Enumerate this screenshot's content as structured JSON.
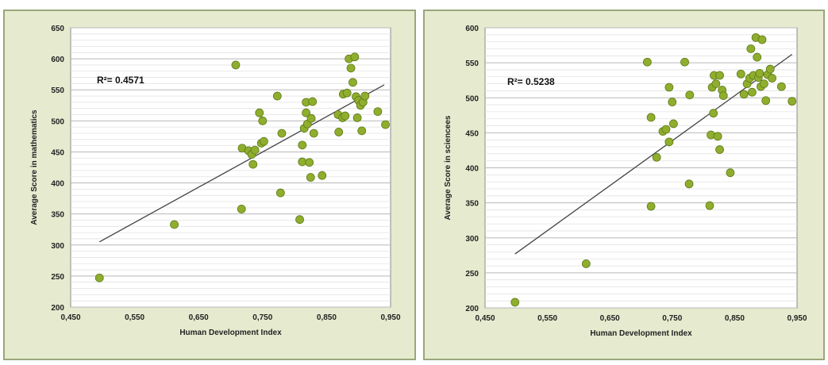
{
  "colors": {
    "panel_bg": "#e6ebcf",
    "plot_bg": "#ffffff",
    "grid": "#c8c8c8",
    "point": "#8fae2e",
    "trend": "#444444"
  },
  "chart_data": [
    {
      "type": "scatter",
      "title": "",
      "xlabel": "Human Development Index",
      "ylabel": "Average Score in mathematics",
      "xlim": [
        0.45,
        0.95
      ],
      "ylim": [
        200,
        650
      ],
      "x_ticks": [
        "0,450",
        "0,550",
        "0,650",
        "0,750",
        "0,850",
        "0,950"
      ],
      "y_ticks": [
        "200",
        "250",
        "300",
        "350",
        "400",
        "450",
        "500",
        "550",
        "600",
        "650"
      ],
      "annotation": "R²= 0.4571",
      "grid": true,
      "trendline": {
        "x": [
          0.495,
          0.94
        ],
        "y": [
          305,
          558
        ]
      },
      "points": [
        [
          0.495,
          247
        ],
        [
          0.612,
          333
        ],
        [
          0.708,
          590
        ],
        [
          0.717,
          358
        ],
        [
          0.718,
          456
        ],
        [
          0.728,
          452
        ],
        [
          0.733,
          446
        ],
        [
          0.735,
          430
        ],
        [
          0.738,
          453
        ],
        [
          0.745,
          513
        ],
        [
          0.748,
          464
        ],
        [
          0.75,
          500
        ],
        [
          0.752,
          467
        ],
        [
          0.773,
          540
        ],
        [
          0.778,
          384
        ],
        [
          0.78,
          480
        ],
        [
          0.808,
          341
        ],
        [
          0.812,
          434
        ],
        [
          0.812,
          461
        ],
        [
          0.815,
          488
        ],
        [
          0.818,
          513
        ],
        [
          0.818,
          530
        ],
        [
          0.82,
          495
        ],
        [
          0.823,
          433
        ],
        [
          0.825,
          409
        ],
        [
          0.826,
          504
        ],
        [
          0.828,
          531
        ],
        [
          0.83,
          480
        ],
        [
          0.843,
          412
        ],
        [
          0.868,
          510
        ],
        [
          0.869,
          482
        ],
        [
          0.875,
          505
        ],
        [
          0.876,
          543
        ],
        [
          0.879,
          508
        ],
        [
          0.882,
          545
        ],
        [
          0.885,
          600
        ],
        [
          0.888,
          585
        ],
        [
          0.891,
          562
        ],
        [
          0.894,
          603
        ],
        [
          0.896,
          539
        ],
        [
          0.898,
          505
        ],
        [
          0.9,
          533
        ],
        [
          0.903,
          525
        ],
        [
          0.905,
          484
        ],
        [
          0.907,
          530
        ],
        [
          0.91,
          540
        ],
        [
          0.93,
          515
        ],
        [
          0.942,
          494
        ]
      ]
    },
    {
      "type": "scatter",
      "title": "",
      "xlabel": "Human Development Index",
      "ylabel": "Average Score in sciencees",
      "xlim": [
        0.45,
        0.95
      ],
      "ylim": [
        200,
        600
      ],
      "x_ticks": [
        "0,450",
        "0,550",
        "0,650",
        "0,750",
        "0,850",
        "0,950"
      ],
      "y_ticks": [
        "200",
        "250",
        "300",
        "350",
        "400",
        "450",
        "500",
        "550",
        "600"
      ],
      "annotation": "R²= 0.5238",
      "grid": true,
      "trendline": {
        "x": [
          0.498,
          0.942
        ],
        "y": [
          277,
          562
        ]
      },
      "points": [
        [
          0.498,
          208
        ],
        [
          0.612,
          263
        ],
        [
          0.71,
          551
        ],
        [
          0.716,
          345
        ],
        [
          0.716,
          472
        ],
        [
          0.725,
          415
        ],
        [
          0.735,
          452
        ],
        [
          0.74,
          455
        ],
        [
          0.745,
          437
        ],
        [
          0.745,
          515
        ],
        [
          0.75,
          494
        ],
        [
          0.752,
          463
        ],
        [
          0.77,
          551
        ],
        [
          0.777,
          377
        ],
        [
          0.778,
          504
        ],
        [
          0.81,
          346
        ],
        [
          0.812,
          447
        ],
        [
          0.814,
          515
        ],
        [
          0.816,
          478
        ],
        [
          0.817,
          532
        ],
        [
          0.82,
          520
        ],
        [
          0.823,
          445
        ],
        [
          0.826,
          426
        ],
        [
          0.826,
          532
        ],
        [
          0.83,
          511
        ],
        [
          0.832,
          503
        ],
        [
          0.843,
          393
        ],
        [
          0.86,
          534
        ],
        [
          0.865,
          505
        ],
        [
          0.87,
          520
        ],
        [
          0.874,
          528
        ],
        [
          0.876,
          570
        ],
        [
          0.878,
          508
        ],
        [
          0.88,
          532
        ],
        [
          0.884,
          586
        ],
        [
          0.886,
          558
        ],
        [
          0.888,
          529
        ],
        [
          0.89,
          535
        ],
        [
          0.892,
          516
        ],
        [
          0.894,
          583
        ],
        [
          0.897,
          520
        ],
        [
          0.9,
          496
        ],
        [
          0.903,
          533
        ],
        [
          0.907,
          541
        ],
        [
          0.91,
          528
        ],
        [
          0.925,
          516
        ],
        [
          0.942,
          495
        ]
      ]
    }
  ]
}
